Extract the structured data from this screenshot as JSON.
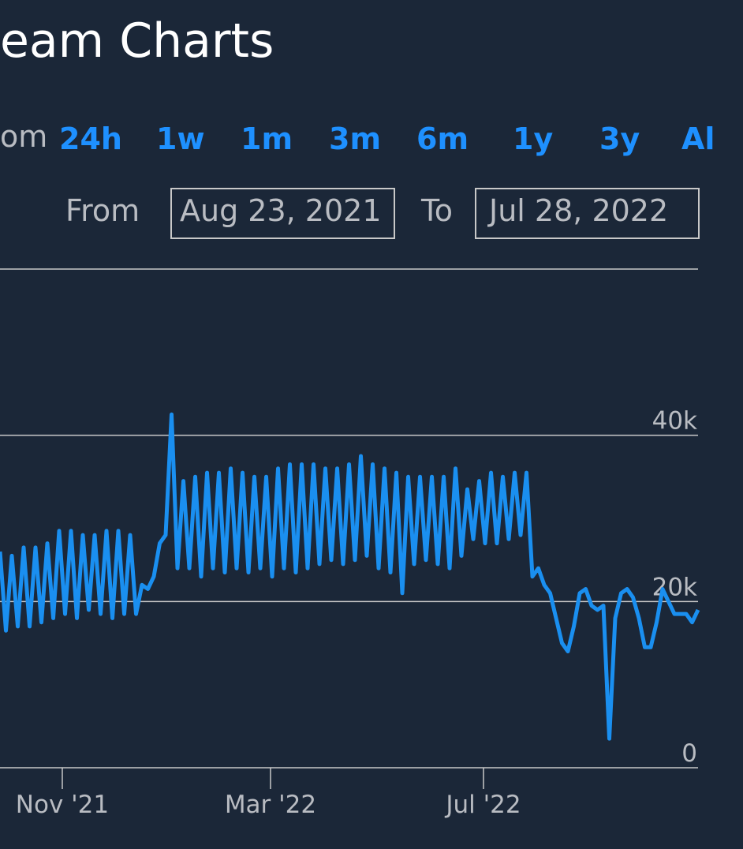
{
  "header": {
    "title": "eam Charts"
  },
  "range": {
    "prefix": "om",
    "buttons": [
      "24h",
      "1w",
      "1m",
      "3m",
      "6m",
      "1y",
      "3y",
      "Al"
    ]
  },
  "dates": {
    "from_label": "From",
    "from_value": "Aug 23, 2021",
    "to_label": "To",
    "to_value": "Jul 28, 2022"
  },
  "chart_data": {
    "type": "line",
    "color": "#1a8ff0",
    "grid": true,
    "values": [
      26000,
      16500,
      25500,
      17000,
      26500,
      17000,
      26500,
      17500,
      27000,
      18000,
      28500,
      18500,
      28500,
      18000,
      28000,
      19000,
      28000,
      18500,
      28500,
      18000,
      28500,
      18500,
      28000,
      18500,
      22000,
      21500,
      23000,
      27000,
      28000,
      42500,
      24000,
      34500,
      24000,
      35000,
      23000,
      35500,
      24000,
      35500,
      23500,
      36000,
      24000,
      35500,
      23500,
      35000,
      24000,
      35000,
      23000,
      36000,
      24000,
      36500,
      23500,
      36500,
      24000,
      36500,
      24500,
      36000,
      25000,
      36000,
      24500,
      36500,
      25000,
      37500,
      25500,
      36500,
      24000,
      36000,
      23500,
      35500,
      21000,
      35000,
      24500,
      35000,
      25000,
      35000,
      24500,
      35000,
      24000,
      36000,
      25500,
      33500,
      27500,
      34500,
      27000,
      35500,
      27000,
      35000,
      27500,
      35500,
      28000,
      35500,
      23000,
      24000,
      22000,
      21000,
      18000,
      15000,
      14000,
      17000,
      21000,
      21500,
      19500,
      19000,
      19500,
      3500,
      18000,
      21000,
      21500,
      20500,
      18000,
      14500,
      14500,
      17500,
      21500,
      20000,
      18500,
      18500,
      18500,
      17500,
      19000
    ],
    "xlim": [
      0,
      118
    ],
    "xticks": [
      {
        "value": 10.53,
        "label": "Nov '21"
      },
      {
        "value": 45.73,
        "label": "Mar '22"
      },
      {
        "value": 81.73,
        "label": "Jul '22"
      }
    ],
    "ylim": [
      0,
      60000
    ],
    "yticks": [
      0,
      {
        "value": 20000,
        "label": "20k"
      },
      {
        "value": 40000,
        "label": "40k"
      }
    ]
  }
}
